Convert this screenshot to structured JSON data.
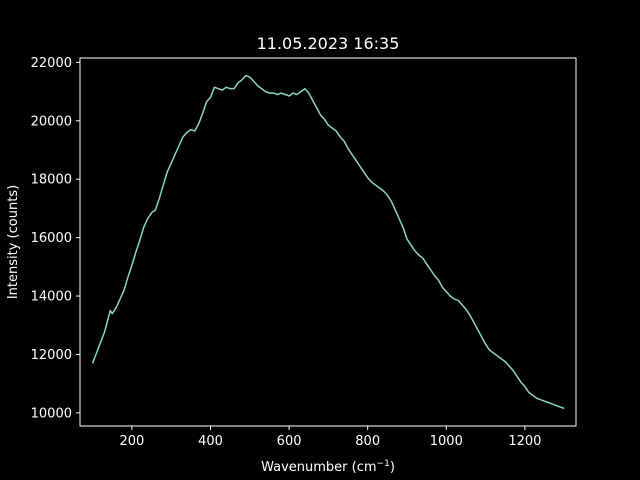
{
  "chart_data": {
    "type": "line",
    "title": "11.05.2023 16:35",
    "xlabel_prefix": "Wavenumber (cm",
    "xlabel_sup": "−1",
    "xlabel_suffix": ")",
    "ylabel": "Intensity (counts)",
    "xlim": [
      68,
      1330
    ],
    "ylim": [
      9550,
      22150
    ],
    "xticks": [
      200,
      400,
      600,
      800,
      1000,
      1200
    ],
    "yticks": [
      10000,
      12000,
      14000,
      16000,
      18000,
      20000,
      22000
    ],
    "grid": false,
    "legend": "none",
    "colors": {
      "background": "#000000",
      "axes": "#ffffff",
      "series": "#8dd3c7"
    },
    "series": [
      {
        "x": [
          100,
          110,
          120,
          130,
          140,
          145,
          150,
          160,
          170,
          180,
          190,
          200,
          210,
          220,
          230,
          240,
          250,
          260,
          270,
          280,
          290,
          300,
          310,
          320,
          330,
          340,
          350,
          360,
          370,
          380,
          390,
          400,
          410,
          420,
          430,
          440,
          450,
          460,
          470,
          480,
          490,
          500,
          510,
          520,
          530,
          540,
          550,
          560,
          570,
          580,
          590,
          600,
          610,
          620,
          630,
          640,
          650,
          660,
          670,
          680,
          690,
          700,
          710,
          720,
          730,
          740,
          750,
          760,
          770,
          780,
          790,
          800,
          810,
          820,
          830,
          840,
          850,
          860,
          870,
          880,
          890,
          900,
          910,
          920,
          930,
          940,
          950,
          960,
          970,
          980,
          990,
          1000,
          1010,
          1020,
          1030,
          1040,
          1050,
          1060,
          1070,
          1080,
          1090,
          1100,
          1110,
          1120,
          1130,
          1140,
          1150,
          1160,
          1170,
          1180,
          1190,
          1200,
          1210,
          1220,
          1230,
          1240,
          1250,
          1260,
          1270,
          1280,
          1290,
          1300
        ],
        "y": [
          11700,
          12050,
          12400,
          12750,
          13250,
          13500,
          13400,
          13600,
          13900,
          14200,
          14650,
          15050,
          15500,
          15900,
          16350,
          16650,
          16850,
          16950,
          17350,
          17800,
          18250,
          18550,
          18850,
          19150,
          19450,
          19600,
          19700,
          19650,
          19900,
          20250,
          20650,
          20800,
          21150,
          21100,
          21050,
          21150,
          21100,
          21100,
          21300,
          21400,
          21550,
          21500,
          21350,
          21200,
          21100,
          21000,
          20950,
          20950,
          20900,
          20950,
          20900,
          20850,
          20950,
          20900,
          21000,
          21100,
          20950,
          20700,
          20450,
          20200,
          20050,
          19850,
          19750,
          19650,
          19450,
          19300,
          19050,
          18850,
          18650,
          18450,
          18250,
          18050,
          17900,
          17800,
          17700,
          17600,
          17450,
          17250,
          16950,
          16650,
          16350,
          15950,
          15750,
          15550,
          15400,
          15300,
          15100,
          14900,
          14700,
          14550,
          14300,
          14150,
          14000,
          13900,
          13850,
          13700,
          13550,
          13350,
          13100,
          12850,
          12600,
          12350,
          12150,
          12050,
          11950,
          11850,
          11750,
          11600,
          11450,
          11250,
          11050,
          10900,
          10700,
          10600,
          10500,
          10450,
          10400,
          10350,
          10300,
          10250,
          10200,
          10150
        ]
      }
    ]
  }
}
